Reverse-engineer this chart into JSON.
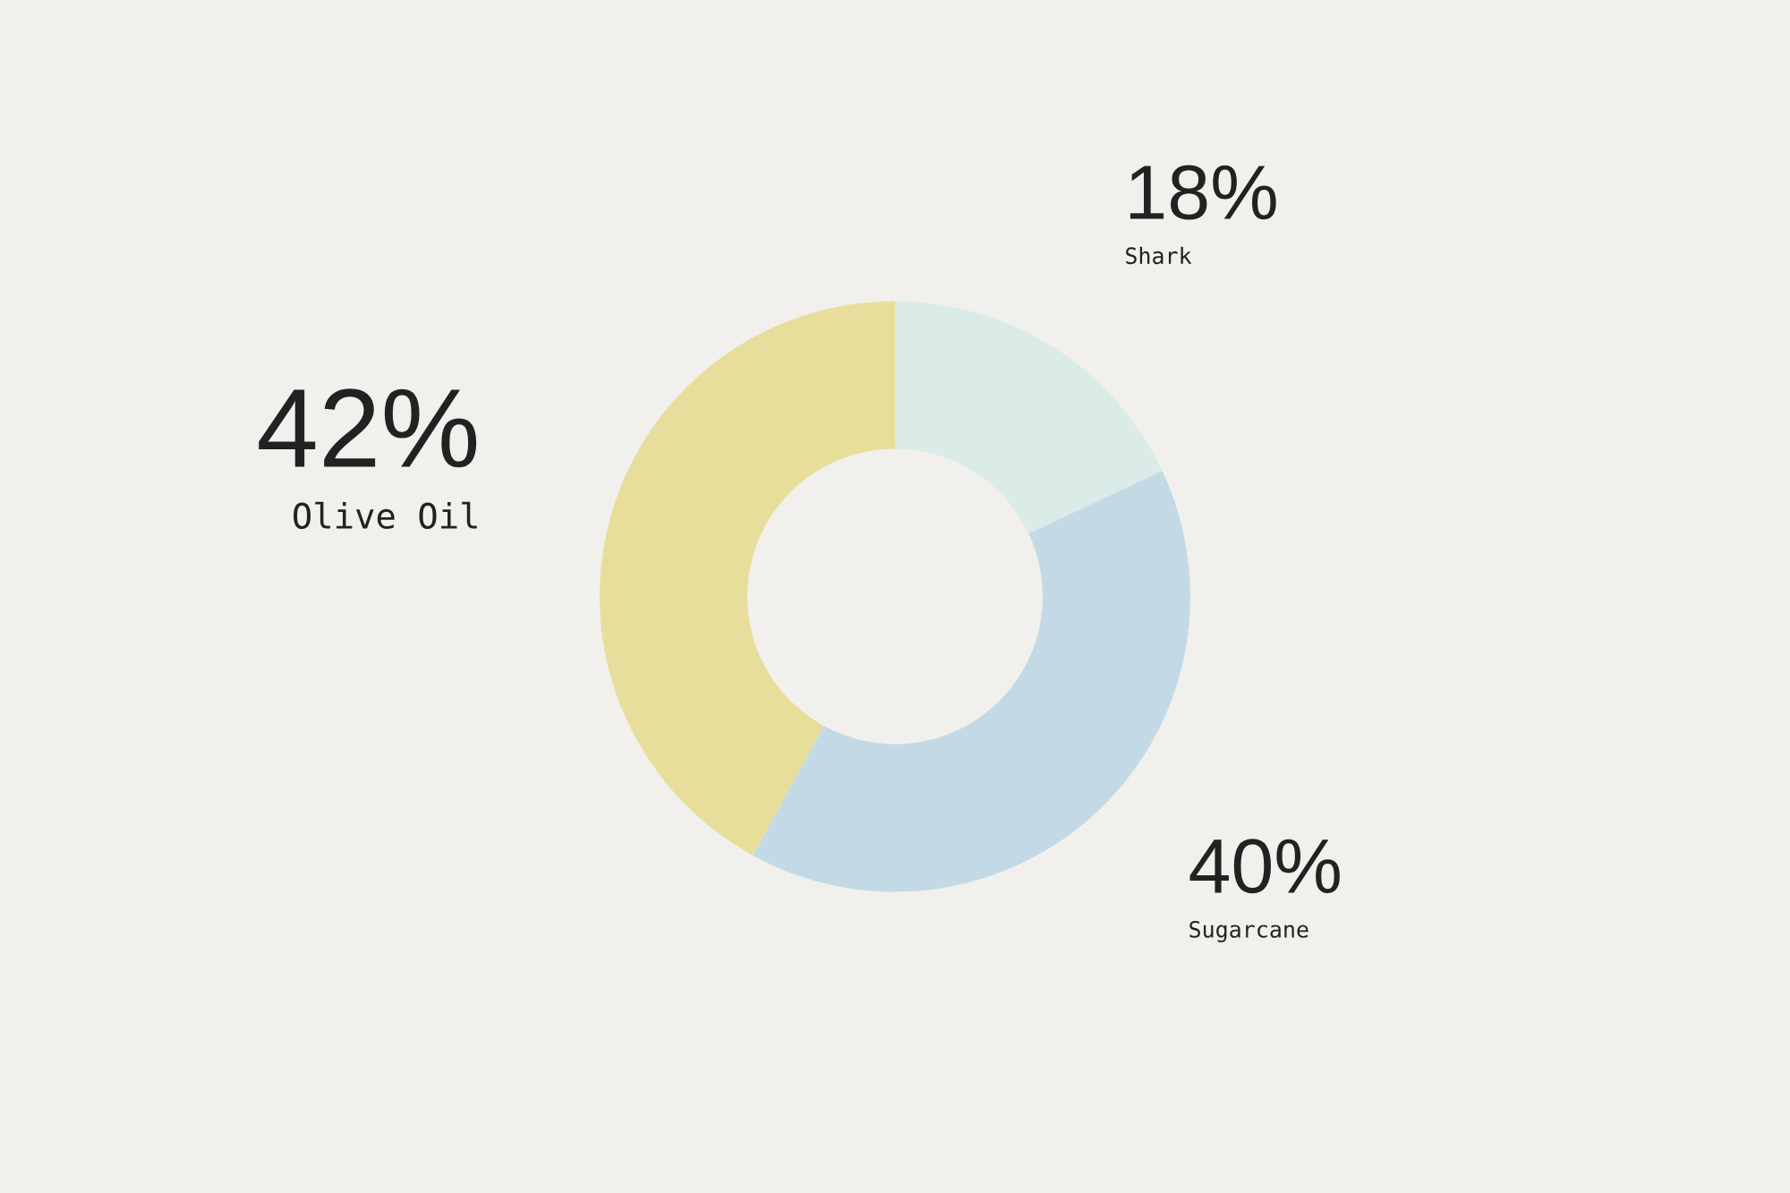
{
  "chart_data": {
    "type": "donut",
    "categories": [
      "Shark",
      "Sugarcane",
      "Olive Oil"
    ],
    "values": [
      18,
      40,
      42
    ],
    "colors": [
      "#dbece8",
      "#c3dae6",
      "#e7de9b"
    ],
    "value_labels": [
      "18%",
      "40%",
      "42%"
    ],
    "legend": false
  }
}
